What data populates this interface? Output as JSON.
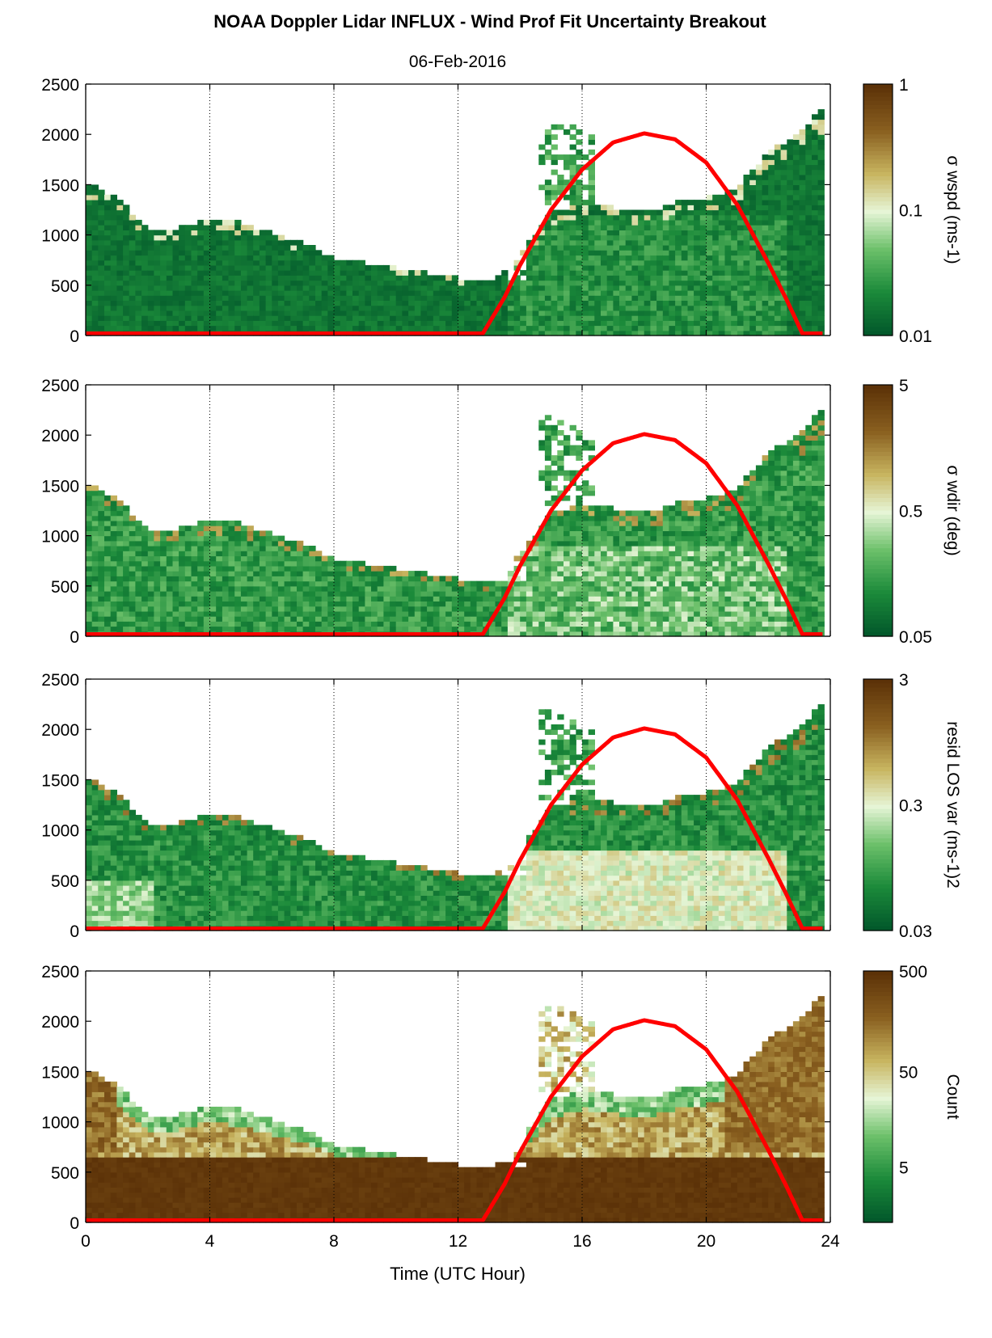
{
  "title": "NOAA Doppler Lidar INFLUX - Wind Prof Fit Uncertainty Breakout",
  "subtitle": "06-Feb-2016",
  "xlabel": "Time (UTC Hour)",
  "colors": {
    "dark_green": "#006a2e",
    "mid_green": "#3fa23f",
    "light_green": "#b2e0a0",
    "pale": "#e8f5d0",
    "tan": "#c8b560",
    "brown": "#5c3208",
    "sun_curve": "#ff0000"
  },
  "chart_data": [
    {
      "type": "heatmap",
      "panel": 1,
      "colorbar_label": "σ wspd (ms-1)",
      "colorbar_ticks": [
        "1",
        "0.1",
        "0.01"
      ],
      "colorbar_range": [
        0.01,
        1
      ],
      "colorbar_scale": "log",
      "xlim": [
        0,
        24
      ],
      "ylim": [
        0,
        2500
      ],
      "x_ticks": [
        0,
        4,
        8,
        12,
        16,
        20,
        24
      ],
      "y_ticks": [
        0,
        500,
        1000,
        1500,
        2000,
        2500
      ],
      "top_of_data_m": [
        [
          0,
          1500
        ],
        [
          1,
          1350
        ],
        [
          2,
          1050
        ],
        [
          3,
          1050
        ],
        [
          4,
          1150
        ],
        [
          5,
          1100
        ],
        [
          6,
          1000
        ],
        [
          7,
          900
        ],
        [
          8,
          750
        ],
        [
          9,
          700
        ],
        [
          10,
          650
        ],
        [
          11,
          600
        ],
        [
          12,
          550
        ],
        [
          13,
          500
        ],
        [
          14,
          800
        ],
        [
          15,
          1200
        ],
        [
          16,
          1300
        ],
        [
          17,
          1250
        ],
        [
          18,
          1200
        ],
        [
          19,
          1300
        ],
        [
          20,
          1350
        ],
        [
          21,
          1450
        ],
        [
          22,
          1800
        ],
        [
          23,
          2000
        ],
        [
          23.8,
          2250
        ]
      ],
      "dominant_value": "0.01-0.05 (dark green)"
    },
    {
      "type": "heatmap",
      "panel": 2,
      "colorbar_label": "σ wdir (deg)",
      "colorbar_ticks": [
        "5",
        "0.5",
        "0.05"
      ],
      "colorbar_range": [
        0.05,
        5
      ],
      "colorbar_scale": "log",
      "xlim": [
        0,
        24
      ],
      "ylim": [
        0,
        2500
      ],
      "x_ticks": [
        0,
        4,
        8,
        12,
        16,
        20,
        24
      ],
      "y_ticks": [
        0,
        500,
        1000,
        1500,
        2000,
        2500
      ],
      "top_of_data_m": [
        [
          0,
          1500
        ],
        [
          1,
          1350
        ],
        [
          2,
          1050
        ],
        [
          3,
          1050
        ],
        [
          4,
          1150
        ],
        [
          5,
          1100
        ],
        [
          6,
          1000
        ],
        [
          7,
          900
        ],
        [
          8,
          750
        ],
        [
          9,
          700
        ],
        [
          10,
          650
        ],
        [
          11,
          600
        ],
        [
          12,
          550
        ],
        [
          13,
          500
        ],
        [
          14,
          800
        ],
        [
          15,
          1200
        ],
        [
          16,
          1300
        ],
        [
          17,
          1250
        ],
        [
          18,
          1200
        ],
        [
          19,
          1300
        ],
        [
          20,
          1350
        ],
        [
          21,
          1450
        ],
        [
          22,
          1800
        ],
        [
          23,
          2000
        ],
        [
          23.8,
          2250
        ]
      ],
      "dominant_value": "0.05-0.3 (green)"
    },
    {
      "type": "heatmap",
      "panel": 3,
      "colorbar_label": "resid LOS var (ms-1)2",
      "colorbar_ticks": [
        "3",
        "0.3",
        "0.03"
      ],
      "colorbar_range": [
        0.03,
        3
      ],
      "colorbar_scale": "log",
      "xlim": [
        0,
        24
      ],
      "ylim": [
        0,
        2500
      ],
      "x_ticks": [
        0,
        4,
        8,
        12,
        16,
        20,
        24
      ],
      "y_ticks": [
        0,
        500,
        1000,
        1500,
        2000,
        2500
      ],
      "top_of_data_m": [
        [
          0,
          1500
        ],
        [
          1,
          1350
        ],
        [
          2,
          1050
        ],
        [
          3,
          1050
        ],
        [
          4,
          1150
        ],
        [
          5,
          1100
        ],
        [
          6,
          1000
        ],
        [
          7,
          900
        ],
        [
          8,
          750
        ],
        [
          9,
          700
        ],
        [
          10,
          650
        ],
        [
          11,
          600
        ],
        [
          12,
          550
        ],
        [
          13,
          500
        ],
        [
          14,
          800
        ],
        [
          15,
          1200
        ],
        [
          16,
          1300
        ],
        [
          17,
          1250
        ],
        [
          18,
          1200
        ],
        [
          19,
          1300
        ],
        [
          20,
          1350
        ],
        [
          21,
          1450
        ],
        [
          22,
          1800
        ],
        [
          23,
          2000
        ],
        [
          23.8,
          2250
        ]
      ],
      "dominant_value": "0.03-0.3 (green), 0.3-1 daytime near surface"
    },
    {
      "type": "heatmap",
      "panel": 4,
      "colorbar_label": "Count",
      "colorbar_ticks": [
        "500",
        "50",
        "5"
      ],
      "colorbar_range": [
        1,
        500
      ],
      "colorbar_scale": "log",
      "xlim": [
        0,
        24
      ],
      "ylim": [
        0,
        2500
      ],
      "x_ticks": [
        0,
        4,
        8,
        12,
        16,
        20,
        24
      ],
      "y_ticks": [
        0,
        500,
        1000,
        1500,
        2000,
        2500
      ],
      "top_of_data_m": [
        [
          0,
          1500
        ],
        [
          1,
          1350
        ],
        [
          2,
          1050
        ],
        [
          3,
          1050
        ],
        [
          4,
          1150
        ],
        [
          5,
          1100
        ],
        [
          6,
          1000
        ],
        [
          7,
          900
        ],
        [
          8,
          750
        ],
        [
          9,
          700
        ],
        [
          10,
          650
        ],
        [
          11,
          600
        ],
        [
          12,
          550
        ],
        [
          13,
          500
        ],
        [
          14,
          800
        ],
        [
          15,
          1200
        ],
        [
          16,
          1300
        ],
        [
          17,
          1250
        ],
        [
          18,
          1200
        ],
        [
          19,
          1300
        ],
        [
          20,
          1350
        ],
        [
          21,
          1450
        ],
        [
          22,
          1800
        ],
        [
          23,
          2000
        ],
        [
          23.8,
          2250
        ]
      ],
      "dominant_value": "500 (dark brown) below ~650 m"
    }
  ],
  "sun_curve": {
    "x": [
      0,
      12.8,
      13.5,
      14,
      15,
      16,
      17,
      18,
      19,
      20,
      21,
      22,
      22.6,
      23.1,
      23.8
    ],
    "y": [
      20,
      20,
      380,
      700,
      1250,
      1650,
      1920,
      2010,
      1950,
      1720,
      1300,
      720,
      350,
      20,
      20
    ]
  }
}
